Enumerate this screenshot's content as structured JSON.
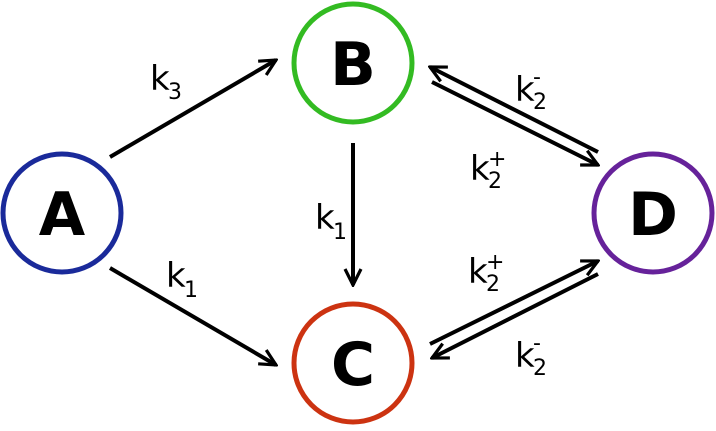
{
  "nodes": [
    {
      "id": "A",
      "label": "A",
      "color": "#1a2a9a"
    },
    {
      "id": "B",
      "label": "B",
      "color": "#33bb22"
    },
    {
      "id": "C",
      "label": "C",
      "color": "#cc3311"
    },
    {
      "id": "D",
      "label": "D",
      "color": "#66229a"
    }
  ],
  "rate_labels": {
    "a_to_b": {
      "base": "k",
      "sub": "3",
      "sup": ""
    },
    "a_to_c": {
      "base": "k",
      "sub": "1",
      "sup": ""
    },
    "b_to_c": {
      "base": "k",
      "sub": "1",
      "sup": ""
    },
    "d_to_b": {
      "base": "k",
      "sub": "2",
      "sup": "-"
    },
    "b_to_d": {
      "base": "k",
      "sub": "2",
      "sup": "+"
    },
    "c_to_d": {
      "base": "k",
      "sub": "2",
      "sup": "+"
    },
    "d_to_c": {
      "base": "k",
      "sub": "2",
      "sup": "-"
    }
  }
}
